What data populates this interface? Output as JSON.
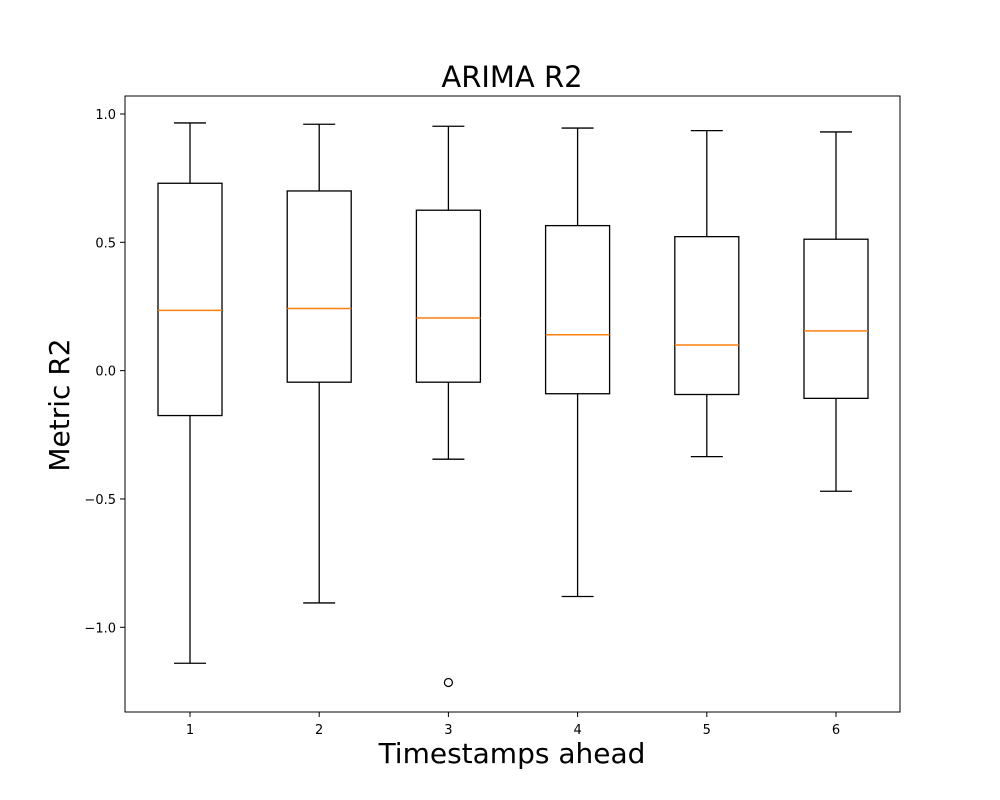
{
  "chart_data": {
    "type": "box",
    "title": "ARIMA R2",
    "xlabel": "Timestamps ahead",
    "ylabel": "Metric R2",
    "categories": [
      "1",
      "2",
      "3",
      "4",
      "5",
      "6"
    ],
    "ylim": [
      -1.33,
      1.07
    ],
    "yticks": [
      -1.0,
      -0.5,
      0.0,
      0.5,
      1.0
    ],
    "ytick_labels": [
      "−1.0",
      "−0.5",
      "0.0",
      "0.5",
      "1.0"
    ],
    "grid": false,
    "boxes": [
      {
        "category": "1",
        "whisker_low": -1.14,
        "q1": -0.175,
        "median": 0.235,
        "q3": 0.73,
        "whisker_high": 0.965,
        "outliers": []
      },
      {
        "category": "2",
        "whisker_low": -0.905,
        "q1": -0.045,
        "median": 0.242,
        "q3": 0.7,
        "whisker_high": 0.96,
        "outliers": []
      },
      {
        "category": "3",
        "whisker_low": -0.345,
        "q1": -0.045,
        "median": 0.205,
        "q3": 0.625,
        "whisker_high": 0.952,
        "outliers": [
          -1.215
        ]
      },
      {
        "category": "4",
        "whisker_low": -0.88,
        "q1": -0.09,
        "median": 0.14,
        "q3": 0.565,
        "whisker_high": 0.945,
        "outliers": []
      },
      {
        "category": "5",
        "whisker_low": -0.335,
        "q1": -0.093,
        "median": 0.1,
        "q3": 0.522,
        "whisker_high": 0.935,
        "outliers": []
      },
      {
        "category": "6",
        "whisker_low": -0.47,
        "q1": -0.108,
        "median": 0.155,
        "q3": 0.512,
        "whisker_high": 0.93,
        "outliers": []
      }
    ],
    "colors": {
      "box": "#000000",
      "median": "#ff7f0e",
      "outlier": "#000000"
    }
  }
}
